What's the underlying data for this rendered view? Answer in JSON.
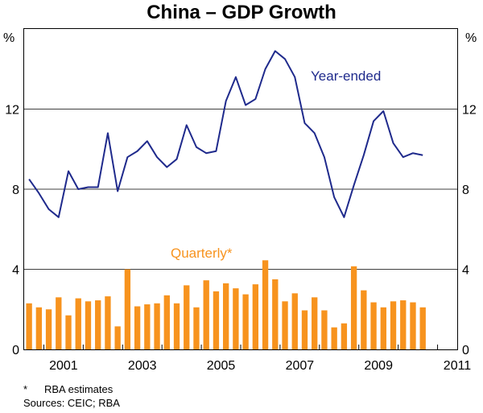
{
  "chart_data": {
    "type": "bar+line",
    "title": "China – GDP Growth",
    "ylabel_left": "%",
    "ylabel_right": "%",
    "ylim": [
      0,
      16
    ],
    "yticks": [
      0,
      4,
      8,
      12
    ],
    "xticks": [
      "2001",
      "2003",
      "2005",
      "2007",
      "2009",
      "2011"
    ],
    "xlim": [
      2000.5,
      2011.5
    ],
    "colors": {
      "line": "#1f2a8c",
      "bars": "#f7931e"
    },
    "series": [
      {
        "name": "Year-ended",
        "kind": "line",
        "x": [
          2000.625,
          2000.875,
          2001.125,
          2001.375,
          2001.625,
          2001.875,
          2002.125,
          2002.375,
          2002.625,
          2002.875,
          2003.125,
          2003.375,
          2003.625,
          2003.875,
          2004.125,
          2004.375,
          2004.625,
          2004.875,
          2005.125,
          2005.375,
          2005.625,
          2005.875,
          2006.125,
          2006.375,
          2006.625,
          2006.875,
          2007.125,
          2007.375,
          2007.625,
          2007.875,
          2008.125,
          2008.375,
          2008.625,
          2008.875,
          2009.125,
          2009.375,
          2009.625,
          2009.875,
          2010.125,
          2010.375,
          2010.625
        ],
        "values": [
          8.5,
          7.8,
          7.0,
          6.6,
          8.9,
          8.0,
          8.1,
          8.1,
          10.8,
          7.9,
          9.6,
          9.9,
          10.4,
          9.6,
          9.1,
          9.5,
          11.2,
          10.1,
          9.8,
          9.9,
          12.4,
          13.6,
          12.2,
          12.5,
          14.0,
          14.9,
          14.5,
          13.6,
          11.3,
          10.8,
          9.6,
          7.6,
          6.6,
          8.2,
          9.7,
          11.4,
          11.9,
          10.3,
          9.6,
          9.8,
          9.7
        ]
      },
      {
        "name": "Quarterly*",
        "kind": "bar",
        "x": [
          2000.0,
          2000.25,
          2000.5,
          2000.75,
          2001.0,
          2001.25,
          2001.5,
          2001.75,
          2002.0,
          2002.25,
          2002.5,
          2002.75,
          2003.0,
          2003.25,
          2003.5,
          2003.75,
          2004.0,
          2004.25,
          2004.5,
          2004.75,
          2005.0,
          2005.25,
          2005.5,
          2005.75,
          2006.0,
          2006.25,
          2006.5,
          2006.75,
          2007.0,
          2007.25,
          2007.5,
          2007.75,
          2008.0,
          2008.25,
          2008.5,
          2008.75,
          2009.0,
          2009.25,
          2009.5,
          2009.75,
          2010.0
        ],
        "values": [
          2.3,
          2.1,
          2.0,
          2.6,
          1.7,
          2.55,
          2.4,
          2.45,
          2.65,
          1.15,
          4.0,
          2.15,
          2.25,
          2.3,
          2.7,
          2.3,
          3.2,
          2.1,
          3.45,
          2.9,
          3.3,
          3.05,
          2.75,
          3.25,
          4.45,
          3.5,
          2.4,
          2.8,
          1.95,
          2.6,
          1.95,
          1.1,
          1.3,
          4.15,
          2.95,
          2.35,
          2.1,
          2.4,
          2.45,
          2.35,
          2.1
        ]
      }
    ],
    "footnote_star": "*",
    "footnote_text": "RBA estimates",
    "sources": "Sources: CEIC; RBA"
  }
}
